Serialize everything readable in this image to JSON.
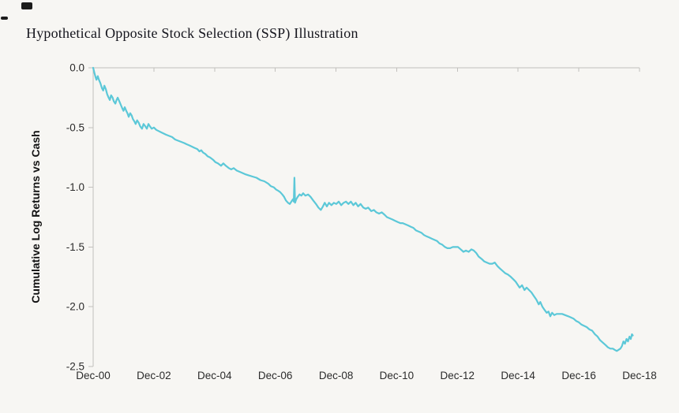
{
  "title": "Hypothetical Opposite Stock Selection (SSP) Illustration",
  "chart_data": {
    "type": "line",
    "title": "Hypothetical Opposite Stock Selection (SSP) Illustration",
    "xlabel": "",
    "ylabel": "Cumulative Log Returns vs Cash",
    "x_unit": "years since Dec-2000",
    "xlim": [
      0,
      18
    ],
    "ylim": [
      -2.5,
      0
    ],
    "grid": false,
    "legend": "none",
    "line_color": "#5cc8d8",
    "axis_color": "#c2c0bd",
    "background_color": "#f7f6f3",
    "x_tick_values": [
      0,
      2,
      4,
      6,
      8,
      10,
      12,
      14,
      16,
      18
    ],
    "x_tick_labels": [
      "Dec-00",
      "Dec-02",
      "Dec-04",
      "Dec-06",
      "Dec-08",
      "Dec-10",
      "Dec-12",
      "Dec-14",
      "Dec-16",
      "Dec-18"
    ],
    "y_tick_values": [
      0,
      -0.5,
      -1.0,
      -1.5,
      -2.0,
      -2.5
    ],
    "y_tick_labels": [
      "0.0",
      "-0.5",
      "-1.0",
      "-1.5",
      "-2.0",
      "-2.5"
    ],
    "series_name": "Cumulative log returns vs cash",
    "points": [
      [
        0.0,
        0.0
      ],
      [
        0.04,
        -0.04
      ],
      [
        0.08,
        -0.08
      ],
      [
        0.11,
        -0.1
      ],
      [
        0.15,
        -0.07
      ],
      [
        0.19,
        -0.1
      ],
      [
        0.24,
        -0.13
      ],
      [
        0.29,
        -0.17
      ],
      [
        0.33,
        -0.19
      ],
      [
        0.37,
        -0.15
      ],
      [
        0.42,
        -0.18
      ],
      [
        0.46,
        -0.22
      ],
      [
        0.51,
        -0.25
      ],
      [
        0.55,
        -0.27
      ],
      [
        0.59,
        -0.23
      ],
      [
        0.64,
        -0.25
      ],
      [
        0.68,
        -0.28
      ],
      [
        0.73,
        -0.3
      ],
      [
        0.77,
        -0.27
      ],
      [
        0.81,
        -0.25
      ],
      [
        0.86,
        -0.28
      ],
      [
        0.91,
        -0.31
      ],
      [
        0.96,
        -0.34
      ],
      [
        1.0,
        -0.36
      ],
      [
        1.04,
        -0.33
      ],
      [
        1.09,
        -0.36
      ],
      [
        1.13,
        -0.38
      ],
      [
        1.17,
        -0.41
      ],
      [
        1.22,
        -0.38
      ],
      [
        1.27,
        -0.4
      ],
      [
        1.31,
        -0.43
      ],
      [
        1.36,
        -0.45
      ],
      [
        1.4,
        -0.47
      ],
      [
        1.45,
        -0.44
      ],
      [
        1.5,
        -0.46
      ],
      [
        1.55,
        -0.49
      ],
      [
        1.61,
        -0.51
      ],
      [
        1.66,
        -0.47
      ],
      [
        1.72,
        -0.49
      ],
      [
        1.77,
        -0.51
      ],
      [
        1.82,
        -0.47
      ],
      [
        1.87,
        -0.49
      ],
      [
        1.93,
        -0.51
      ],
      [
        2.0,
        -0.5
      ],
      [
        2.08,
        -0.52
      ],
      [
        2.16,
        -0.53
      ],
      [
        2.24,
        -0.54
      ],
      [
        2.32,
        -0.55
      ],
      [
        2.4,
        -0.56
      ],
      [
        2.5,
        -0.57
      ],
      [
        2.6,
        -0.58
      ],
      [
        2.7,
        -0.6
      ],
      [
        2.8,
        -0.61
      ],
      [
        2.9,
        -0.62
      ],
      [
        3.0,
        -0.63
      ],
      [
        3.08,
        -0.64
      ],
      [
        3.17,
        -0.65
      ],
      [
        3.26,
        -0.66
      ],
      [
        3.34,
        -0.67
      ],
      [
        3.43,
        -0.68
      ],
      [
        3.5,
        -0.7
      ],
      [
        3.56,
        -0.69
      ],
      [
        3.62,
        -0.71
      ],
      [
        3.69,
        -0.72
      ],
      [
        3.77,
        -0.74
      ],
      [
        3.85,
        -0.75
      ],
      [
        3.95,
        -0.77
      ],
      [
        4.03,
        -0.79
      ],
      [
        4.11,
        -0.8
      ],
      [
        4.21,
        -0.82
      ],
      [
        4.29,
        -0.8
      ],
      [
        4.37,
        -0.82
      ],
      [
        4.47,
        -0.84
      ],
      [
        4.55,
        -0.85
      ],
      [
        4.63,
        -0.84
      ],
      [
        4.73,
        -0.86
      ],
      [
        4.82,
        -0.87
      ],
      [
        4.91,
        -0.88
      ],
      [
        5.0,
        -0.89
      ],
      [
        5.12,
        -0.9
      ],
      [
        5.25,
        -0.91
      ],
      [
        5.38,
        -0.92
      ],
      [
        5.51,
        -0.94
      ],
      [
        5.64,
        -0.95
      ],
      [
        5.77,
        -0.97
      ],
      [
        5.85,
        -0.99
      ],
      [
        5.95,
        -1.0
      ],
      [
        6.03,
        -1.02
      ],
      [
        6.1,
        -1.03
      ],
      [
        6.16,
        -1.04
      ],
      [
        6.23,
        -1.06
      ],
      [
        6.29,
        -1.08
      ],
      [
        6.35,
        -1.11
      ],
      [
        6.42,
        -1.13
      ],
      [
        6.48,
        -1.14
      ],
      [
        6.53,
        -1.12
      ],
      [
        6.58,
        -1.1
      ],
      [
        6.61,
        -1.12
      ],
      [
        6.63,
        -0.92
      ],
      [
        6.65,
        -1.13
      ],
      [
        6.69,
        -1.1
      ],
      [
        6.74,
        -1.08
      ],
      [
        6.8,
        -1.06
      ],
      [
        6.86,
        -1.07
      ],
      [
        6.92,
        -1.05
      ],
      [
        6.99,
        -1.07
      ],
      [
        7.08,
        -1.06
      ],
      [
        7.16,
        -1.08
      ],
      [
        7.25,
        -1.11
      ],
      [
        7.34,
        -1.14
      ],
      [
        7.42,
        -1.17
      ],
      [
        7.5,
        -1.19
      ],
      [
        7.57,
        -1.16
      ],
      [
        7.63,
        -1.13
      ],
      [
        7.7,
        -1.16
      ],
      [
        7.77,
        -1.13
      ],
      [
        7.85,
        -1.15
      ],
      [
        7.93,
        -1.13
      ],
      [
        8.01,
        -1.14
      ],
      [
        8.09,
        -1.12
      ],
      [
        8.17,
        -1.15
      ],
      [
        8.25,
        -1.13
      ],
      [
        8.33,
        -1.12
      ],
      [
        8.41,
        -1.14
      ],
      [
        8.49,
        -1.12
      ],
      [
        8.57,
        -1.15
      ],
      [
        8.65,
        -1.13
      ],
      [
        8.73,
        -1.16
      ],
      [
        8.81,
        -1.14
      ],
      [
        8.9,
        -1.17
      ],
      [
        8.98,
        -1.18
      ],
      [
        9.06,
        -1.17
      ],
      [
        9.16,
        -1.2
      ],
      [
        9.25,
        -1.19
      ],
      [
        9.33,
        -1.21
      ],
      [
        9.42,
        -1.22
      ],
      [
        9.51,
        -1.21
      ],
      [
        9.6,
        -1.23
      ],
      [
        9.68,
        -1.25
      ],
      [
        9.77,
        -1.26
      ],
      [
        9.86,
        -1.27
      ],
      [
        9.94,
        -1.28
      ],
      [
        10.03,
        -1.29
      ],
      [
        10.12,
        -1.3
      ],
      [
        10.2,
        -1.3
      ],
      [
        10.29,
        -1.31
      ],
      [
        10.38,
        -1.32
      ],
      [
        10.46,
        -1.33
      ],
      [
        10.55,
        -1.34
      ],
      [
        10.63,
        -1.36
      ],
      [
        10.72,
        -1.37
      ],
      [
        10.81,
        -1.38
      ],
      [
        10.9,
        -1.4
      ],
      [
        10.98,
        -1.41
      ],
      [
        11.07,
        -1.42
      ],
      [
        11.15,
        -1.43
      ],
      [
        11.24,
        -1.44
      ],
      [
        11.33,
        -1.45
      ],
      [
        11.41,
        -1.47
      ],
      [
        11.5,
        -1.48
      ],
      [
        11.59,
        -1.5
      ],
      [
        11.67,
        -1.51
      ],
      [
        11.76,
        -1.51
      ],
      [
        11.85,
        -1.5
      ],
      [
        11.93,
        -1.5
      ],
      [
        12.02,
        -1.5
      ],
      [
        12.11,
        -1.52
      ],
      [
        12.2,
        -1.54
      ],
      [
        12.28,
        -1.53
      ],
      [
        12.37,
        -1.54
      ],
      [
        12.46,
        -1.52
      ],
      [
        12.54,
        -1.53
      ],
      [
        12.62,
        -1.55
      ],
      [
        12.7,
        -1.58
      ],
      [
        12.8,
        -1.6
      ],
      [
        12.88,
        -1.62
      ],
      [
        12.97,
        -1.63
      ],
      [
        13.06,
        -1.64
      ],
      [
        13.15,
        -1.64
      ],
      [
        13.23,
        -1.63
      ],
      [
        13.32,
        -1.66
      ],
      [
        13.4,
        -1.68
      ],
      [
        13.49,
        -1.7
      ],
      [
        13.58,
        -1.72
      ],
      [
        13.66,
        -1.73
      ],
      [
        13.76,
        -1.75
      ],
      [
        13.84,
        -1.77
      ],
      [
        13.92,
        -1.79
      ],
      [
        13.97,
        -1.81
      ],
      [
        14.05,
        -1.84
      ],
      [
        14.13,
        -1.82
      ],
      [
        14.21,
        -1.86
      ],
      [
        14.28,
        -1.84
      ],
      [
        14.36,
        -1.86
      ],
      [
        14.44,
        -1.88
      ],
      [
        14.52,
        -1.91
      ],
      [
        14.6,
        -1.94
      ],
      [
        14.68,
        -1.98
      ],
      [
        14.73,
        -1.96
      ],
      [
        14.8,
        -2.0
      ],
      [
        14.88,
        -2.03
      ],
      [
        14.94,
        -2.05
      ],
      [
        15.0,
        -2.04
      ],
      [
        15.06,
        -2.08
      ],
      [
        15.12,
        -2.05
      ],
      [
        15.19,
        -2.07
      ],
      [
        15.27,
        -2.06
      ],
      [
        15.35,
        -2.06
      ],
      [
        15.45,
        -2.06
      ],
      [
        15.55,
        -2.07
      ],
      [
        15.65,
        -2.08
      ],
      [
        15.74,
        -2.09
      ],
      [
        15.83,
        -2.1
      ],
      [
        15.92,
        -2.12
      ],
      [
        16.0,
        -2.13
      ],
      [
        16.09,
        -2.15
      ],
      [
        16.18,
        -2.16
      ],
      [
        16.26,
        -2.17
      ],
      [
        16.35,
        -2.19
      ],
      [
        16.44,
        -2.2
      ],
      [
        16.53,
        -2.23
      ],
      [
        16.62,
        -2.25
      ],
      [
        16.7,
        -2.28
      ],
      [
        16.79,
        -2.3
      ],
      [
        16.88,
        -2.32
      ],
      [
        16.96,
        -2.34
      ],
      [
        17.04,
        -2.35
      ],
      [
        17.12,
        -2.35
      ],
      [
        17.18,
        -2.36
      ],
      [
        17.25,
        -2.37
      ],
      [
        17.31,
        -2.36
      ],
      [
        17.37,
        -2.35
      ],
      [
        17.42,
        -2.33
      ],
      [
        17.47,
        -2.29
      ],
      [
        17.52,
        -2.31
      ],
      [
        17.57,
        -2.27
      ],
      [
        17.62,
        -2.29
      ],
      [
        17.67,
        -2.25
      ],
      [
        17.71,
        -2.27
      ],
      [
        17.75,
        -2.23
      ],
      [
        17.78,
        -2.24
      ]
    ]
  }
}
